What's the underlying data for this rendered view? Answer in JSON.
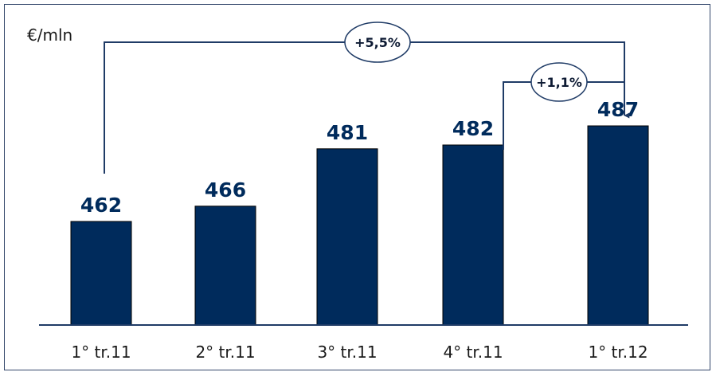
{
  "chart_data": {
    "type": "bar",
    "unit_label": "€/mln",
    "categories": [
      "1° tr.11",
      "2° tr.11",
      "3° tr.11",
      "4° tr.11",
      "1° tr.12"
    ],
    "values": [
      462,
      466,
      481,
      482,
      487
    ],
    "value_labels": [
      "462",
      "466",
      "481",
      "482",
      "487"
    ],
    "annotations": [
      {
        "from_category": "1° tr.11",
        "to_category": "1° tr.12",
        "label": "+5,5%"
      },
      {
        "from_category": "4° tr.11",
        "to_category": "1° tr.12",
        "label": "+1,1%"
      }
    ],
    "grid": false,
    "legend": "none"
  },
  "colors": {
    "bar": "#002b5c",
    "text": "#002b5c",
    "axis": "#1f3b66",
    "arrow": "#1f3b66"
  }
}
